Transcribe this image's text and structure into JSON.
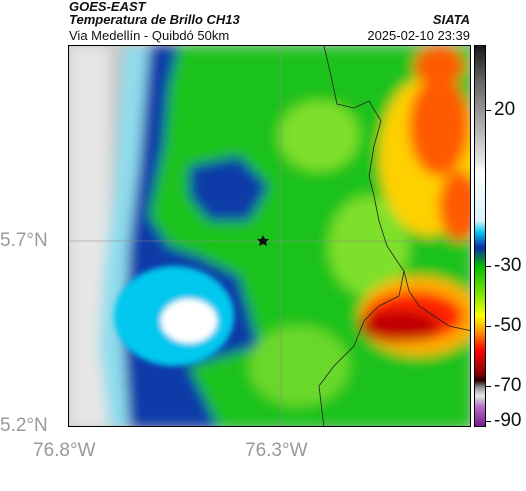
{
  "header": {
    "satellite": "GOES-EAST",
    "product": "Temperatura de Brillo CH13",
    "area": "Via Medellín - Quibdó 50km",
    "source": "SIATA",
    "timestamp": "2025-02-10 23:39"
  },
  "axes": {
    "lat_labels": [
      "5.7°N",
      "5.2°N"
    ],
    "lon_labels": [
      "76.8°W",
      "76.3°W"
    ]
  },
  "colorbar": {
    "labels": [
      "20",
      "-30",
      "-50",
      "-70",
      "-90"
    ]
  },
  "map": {
    "marker_icon": "star-icon"
  }
}
